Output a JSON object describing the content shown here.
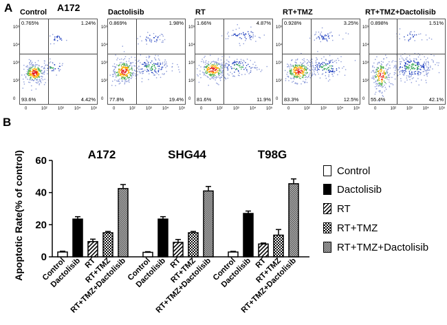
{
  "panel_a": {
    "letter": "A",
    "cell_line": "A172",
    "plots": [
      {
        "title": "Control",
        "ul": "0.765%",
        "ur": "1.24%",
        "ll": "93.6%",
        "lr": "4.42%"
      },
      {
        "title": "Dactolisib",
        "ul": "0.869%",
        "ur": "1.98%",
        "ll": "77.8%",
        "lr": "19.4%"
      },
      {
        "title": "RT",
        "ul": "1.66%",
        "ur": "4.87%",
        "ll": "81.6%",
        "lr": "11.9%"
      },
      {
        "title": "RT+TMZ",
        "ul": "0.928%",
        "ur": "3.25%",
        "ll": "83.3%",
        "lr": "12.5%"
      },
      {
        "title": "RT+TMZ+Dactolisib",
        "ul": "0.898%",
        "ur": "1.51%",
        "ll": "55.4%",
        "lr": "42.1%"
      }
    ],
    "y_ticks": [
      "10⁵",
      "10⁴",
      "10³",
      "10²",
      "0"
    ],
    "x_ticks": [
      "0",
      "10²",
      "10³",
      "10⁴",
      "10⁵"
    ]
  },
  "panel_b": {
    "letter": "B"
  },
  "chart_data": {
    "type": "bar",
    "ylabel": "Apoptotic Rate(% of control)",
    "ylim": [
      0,
      60
    ],
    "yticks": [
      0,
      20,
      40,
      60
    ],
    "categories": [
      "Control",
      "Dactolisib",
      "RT",
      "RT+TMZ",
      "RT+TMZ+Dactolisib"
    ],
    "colors": {
      "control": "#ffffff",
      "dactolisib": "#000000"
    },
    "groups": [
      {
        "name": "A172",
        "values": [
          3,
          23.5,
          9.5,
          15,
          42.5
        ],
        "errors": [
          0.5,
          1.5,
          1.5,
          0.8,
          2.5
        ]
      },
      {
        "name": "SHG44",
        "values": [
          2.8,
          23.5,
          9,
          15,
          41
        ],
        "errors": [
          0.4,
          1.5,
          1.8,
          0.8,
          2.8
        ]
      },
      {
        "name": "T98G",
        "values": [
          3,
          27,
          8,
          13.5,
          45.5
        ],
        "errors": [
          0.4,
          1.5,
          0.6,
          3.5,
          3
        ]
      }
    ],
    "legend": [
      "Control",
      "Dactolisib",
      "RT",
      "RT+TMZ",
      "RT+TMZ+Dactolisib"
    ],
    "legend_position": "right"
  }
}
